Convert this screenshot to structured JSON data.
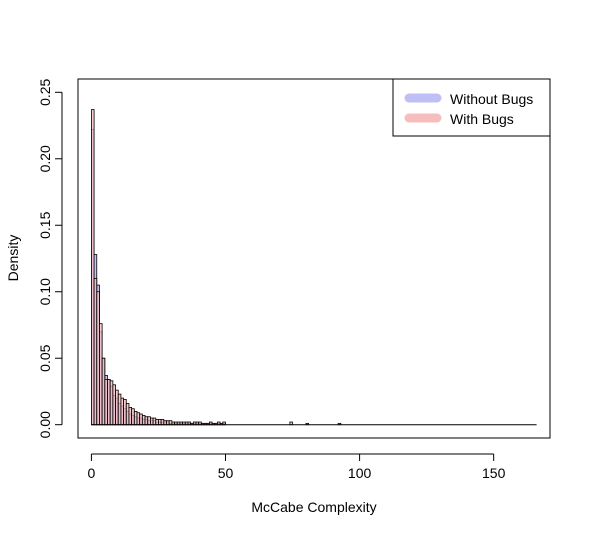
{
  "chart_data": {
    "type": "bar",
    "title": "",
    "xlabel": "McCabe Complexity",
    "ylabel": "Density",
    "xlim": [
      -5,
      171
    ],
    "ylim": [
      -0.01,
      0.26
    ],
    "xticks": [
      0,
      50,
      100,
      150
    ],
    "xtick_labels": [
      "0",
      "50",
      "100",
      "150"
    ],
    "yticks": [
      0,
      0.05,
      0.1,
      0.15,
      0.2,
      0.25
    ],
    "ytick_labels": [
      "0.00",
      "0.05",
      "0.10",
      "0.15",
      "0.20",
      "0.25"
    ],
    "bin_width": 1,
    "legend": {
      "position": "top-right",
      "entries": [
        {
          "label": "Without Bugs",
          "color": "#bfbff5"
        },
        {
          "label": "With Bugs",
          "color": "#f7bcbc"
        }
      ]
    },
    "series": [
      {
        "name": "Without Bugs",
        "color": "#bfbff5",
        "bins_start": 1,
        "values": [
          0.222,
          0.128,
          0.105,
          0.07,
          0.05,
          0.037,
          0.034,
          0.029,
          0.022,
          0.02,
          0.016,
          0.014,
          0.012,
          0.01,
          0.008,
          0.007,
          0.006,
          0.005,
          0.005,
          0.004,
          0.004,
          0.003,
          0.003,
          0.003,
          0.002,
          0.002,
          0.002,
          0.002,
          0.002,
          0.001,
          0.001,
          0.001,
          0.001,
          0.001,
          0.001,
          0.001,
          0.001,
          0.001,
          0.001,
          0.001,
          0.001,
          0.001,
          0.001,
          0.001,
          0.001,
          0.001,
          0.001,
          0.001,
          0.001,
          0.001
        ]
      },
      {
        "name": "With Bugs",
        "color": "#f7bcbc",
        "bins_start": 1,
        "values": [
          0.237,
          0.11,
          0.1,
          0.076,
          0.05,
          0.034,
          0.034,
          0.033,
          0.03,
          0.026,
          0.023,
          0.02,
          0.019,
          0.016,
          0.013,
          0.012,
          0.01,
          0.009,
          0.008,
          0.007,
          0.006,
          0.006,
          0.005,
          0.005,
          0.004,
          0.004,
          0.004,
          0.003,
          0.003,
          0.003,
          0.002,
          0.002,
          0.002,
          0.002,
          0.002,
          0.002,
          0.002,
          0.001,
          0.002,
          0.002,
          0.002,
          0.001,
          0.001,
          0.001,
          0.002,
          0.001,
          0.001,
          0.002,
          0.001,
          0.002,
          0,
          0,
          0,
          0,
          0,
          0,
          0,
          0,
          0,
          0,
          0,
          0,
          0,
          0,
          0,
          0,
          0,
          0,
          0,
          0,
          0,
          0,
          0,
          0,
          0.002,
          0,
          0,
          0,
          0,
          0,
          0.001,
          0,
          0,
          0,
          0,
          0,
          0,
          0,
          0,
          0,
          0,
          0,
          0.001
        ]
      }
    ],
    "baseline_segment": [
      0,
      166
    ]
  }
}
